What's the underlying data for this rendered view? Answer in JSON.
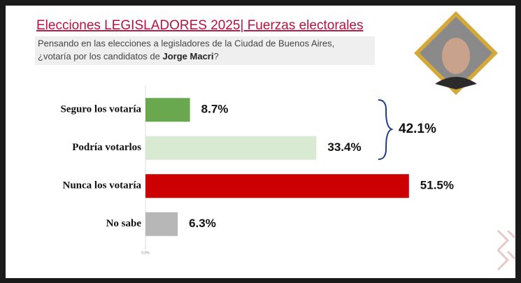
{
  "chart_data": {
    "type": "hbar",
    "title": "Elecciones LEGISLADORES 2025| Fuerzas electorales",
    "subtitle_line1": "Pensando en las elecciones a legisladores de la Ciudad de Buenos Aires,",
    "subtitle_line2": [
      "¿votaría por los candidatos de ",
      "Jorge Macri",
      "?"
    ],
    "categories": [
      "Seguro los votaría",
      "Podría votarlos",
      "Nunca los votaría",
      "No sabe"
    ],
    "values": [
      8.7,
      33.4,
      51.5,
      6.3
    ],
    "value_labels": [
      "8.7%",
      "33.4%",
      "51.5%",
      "6.3%"
    ],
    "colors": [
      "#6aa84f",
      "#d9ead3",
      "#cc0000",
      "#b7b7b7"
    ],
    "xlim": [
      0,
      60
    ],
    "xticks": [
      {
        "value": 0,
        "label": "0.0%"
      }
    ],
    "annotation": "42.1%"
  }
}
